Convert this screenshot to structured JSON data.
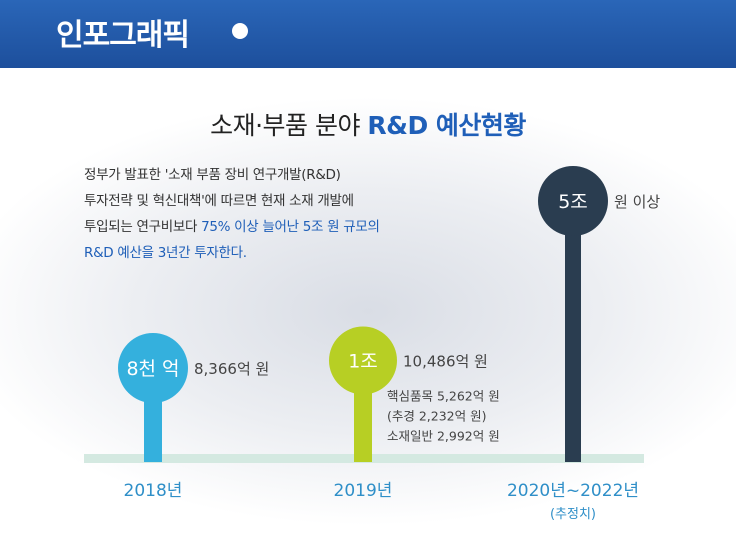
{
  "header": {
    "title": "인포그래픽"
  },
  "main": {
    "title_part1": "소재·부품 분야 ",
    "title_part2": "R&D 예산현황",
    "desc_line1": "정부가 발표한 '소재 부품 장비 연구개발(R&D)",
    "desc_line2": "투자전략 및 혁신대책'에 따르면 현재 소재 개발에",
    "desc_line3a": "투입되는 연구비보다 ",
    "desc_line3b": "75% 이상 늘어난 5조 원 규모의",
    "desc_line4": "R&D 예산을 3년간 투자한다."
  },
  "colors": {
    "header": "#1d4f9c",
    "baseline": "#d4e9e1",
    "s2018": "#34b0dd",
    "s2019": "#b7cf24",
    "s2020": "#2a3d50"
  },
  "chart_data": {
    "type": "bar",
    "categories": [
      "2018년",
      "2019년",
      "2020년~2022년"
    ],
    "category_sub": [
      "",
      "",
      "(추정치)"
    ],
    "values": [
      8366,
      10486,
      50000
    ],
    "circle_labels": [
      "8천 억",
      "1조",
      "5조"
    ],
    "value_labels": [
      "8,366억 원",
      "10,486억 원",
      "원 이상"
    ],
    "notes": [
      [],
      [
        "핵심품목 5,262억 원",
        "(추경 2,232억 원)",
        "소재일반 2,992억 원"
      ],
      []
    ],
    "colors": [
      "#34b0dd",
      "#b7cf24",
      "#2a3d50"
    ],
    "unit": "억 원"
  }
}
